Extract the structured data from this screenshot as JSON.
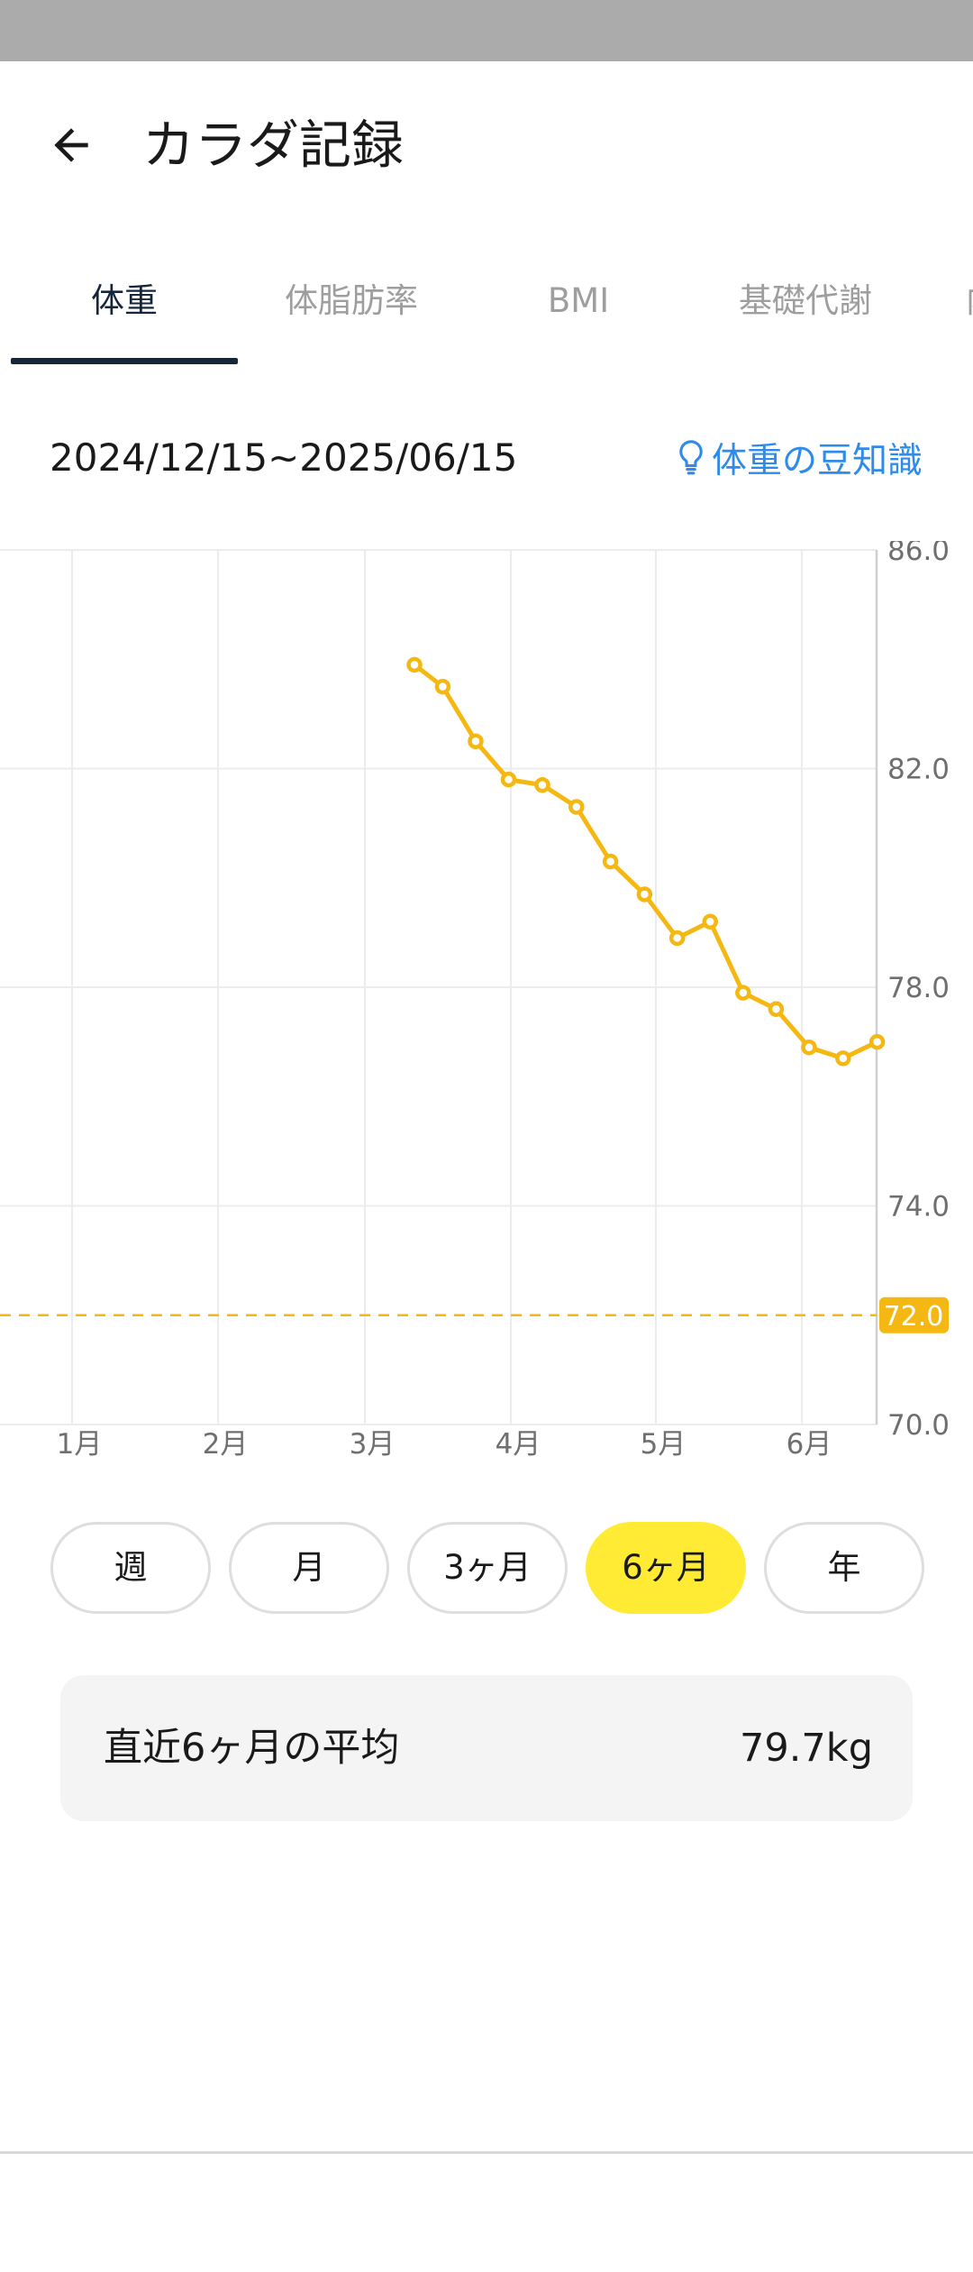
{
  "header": {
    "title": "カラダ記録",
    "back_icon": "arrow-left-icon"
  },
  "tabs": [
    {
      "label": "体重",
      "active": true
    },
    {
      "label": "体脂肪率",
      "active": false
    },
    {
      "label": "BMI",
      "active": false
    },
    {
      "label": "基礎代謝",
      "active": false
    },
    {
      "label": "内",
      "active": false
    }
  ],
  "date_range": "2024/12/15~2025/06/15",
  "tips_link": {
    "label": "体重の豆知識",
    "icon": "lightbulb-icon"
  },
  "colors": {
    "accent_yellow": "#FFEB33",
    "line_orange": "#F5B812",
    "tab_active": "#15263A",
    "link_blue": "#2F8BEA"
  },
  "chart_data": {
    "type": "line",
    "x_tick_labels": [
      "1月",
      "2月",
      "3月",
      "4月",
      "5月",
      "6月"
    ],
    "y_tick_labels": [
      "86.0",
      "82.0",
      "78.0",
      "74.0",
      "70.0"
    ],
    "ylim": [
      70.0,
      86.0
    ],
    "grid": true,
    "goal_line": {
      "value": 72.0,
      "label": "72.0"
    },
    "series": [
      {
        "x": [
          "2025-03-10",
          "2025-03-16",
          "2025-03-23",
          "2025-03-30",
          "2025-04-06",
          "2025-04-13",
          "2025-04-20",
          "2025-04-27",
          "2025-05-04",
          "2025-05-11",
          "2025-05-18",
          "2025-05-25",
          "2025-06-01",
          "2025-06-08",
          "2025-06-15"
        ],
        "values": [
          83.9,
          83.5,
          82.5,
          81.8,
          81.7,
          81.3,
          80.3,
          79.7,
          78.9,
          79.2,
          77.9,
          77.6,
          76.9,
          76.7,
          77.0
        ]
      }
    ]
  },
  "period_buttons": [
    {
      "label": "週",
      "active": false
    },
    {
      "label": "月",
      "active": false
    },
    {
      "label": "3ヶ月",
      "active": false
    },
    {
      "label": "6ヶ月",
      "active": true
    },
    {
      "label": "年",
      "active": false
    }
  ],
  "average": {
    "label": "直近6ヶ月の平均",
    "value": "79.7kg"
  }
}
